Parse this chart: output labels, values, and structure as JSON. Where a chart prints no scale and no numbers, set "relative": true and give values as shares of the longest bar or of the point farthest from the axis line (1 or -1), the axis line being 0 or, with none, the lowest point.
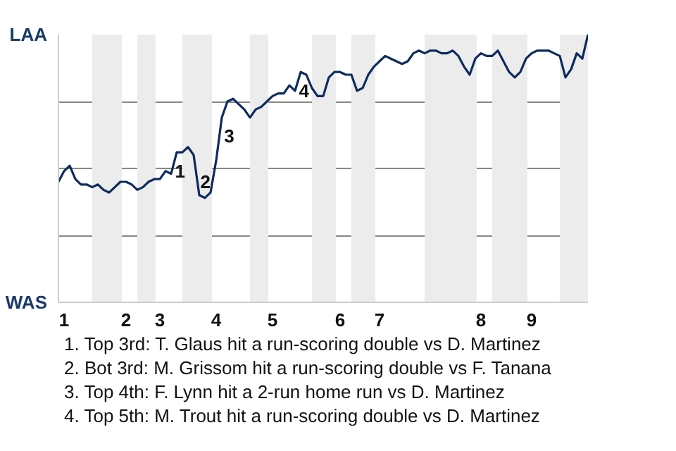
{
  "chart_data": {
    "type": "line",
    "relative": true,
    "categories": [
      null,
      "1",
      null,
      null,
      null,
      null,
      null,
      null,
      null,
      null,
      null,
      null,
      "2",
      null,
      null,
      null,
      null,
      null,
      "3",
      null,
      null,
      null,
      null,
      null,
      null,
      null,
      null,
      null,
      "4",
      null,
      null,
      null,
      null,
      null,
      null,
      null,
      null,
      null,
      "5",
      null,
      null,
      null,
      null,
      null,
      null,
      null,
      null,
      null,
      null,
      null,
      "6",
      null,
      null,
      null,
      null,
      null,
      null,
      "7",
      null,
      null,
      null,
      null,
      null,
      null,
      null,
      null,
      null,
      null,
      null,
      null,
      null,
      null,
      null,
      null,
      null,
      "8",
      null,
      null,
      null,
      null,
      null,
      null,
      null,
      null,
      "9",
      null,
      null,
      null,
      null,
      null,
      null,
      null,
      null,
      null,
      null
    ],
    "grid": "y",
    "marker": "none",
    "line_style": "solid",
    "series": [
      {
        "color": "#0d2b5e",
        "values": [
          0.45,
          0.49,
          0.51,
          0.46,
          0.44,
          0.44,
          0.43,
          0.44,
          0.42,
          0.41,
          0.43,
          0.45,
          0.45,
          0.44,
          0.42,
          0.43,
          0.45,
          0.46,
          0.46,
          0.49,
          0.48,
          0.56,
          0.56,
          0.58,
          0.55,
          0.4,
          0.39,
          0.41,
          0.53,
          0.69,
          0.75,
          0.76,
          0.74,
          0.72,
          0.69,
          0.72,
          0.73,
          0.75,
          0.77,
          0.78,
          0.78,
          0.81,
          0.79,
          0.86,
          0.85,
          0.8,
          0.77,
          0.77,
          0.84,
          0.86,
          0.86,
          0.85,
          0.85,
          0.79,
          0.8,
          0.85,
          0.88,
          0.9,
          0.92,
          0.91,
          0.9,
          0.89,
          0.9,
          0.93,
          0.94,
          0.93,
          0.94,
          0.94,
          0.93,
          0.93,
          0.94,
          0.92,
          0.88,
          0.85,
          0.91,
          0.93,
          0.92,
          0.92,
          0.94,
          0.9,
          0.86,
          0.84,
          0.86,
          0.91,
          0.93,
          0.94,
          0.94,
          0.94,
          0.93,
          0.92,
          0.84,
          0.87,
          0.93,
          0.91,
          1.0
        ]
      }
    ],
    "annotations": [
      "LAA",
      "WAS",
      "1",
      "2",
      "3",
      "4",
      "1. Top 3rd: T. Glaus hit a run-scoring double vs D. Martinez",
      "2. Bot 3rd: M. Grissom hit a run-scoring double vs F. Tanana",
      "3. Top 4th: F. Lynn hit a 2-run home run vs D. Martinez",
      "4. Top 5th: M. Trout hit a run-scoring double vs D. Martinez"
    ]
  }
}
